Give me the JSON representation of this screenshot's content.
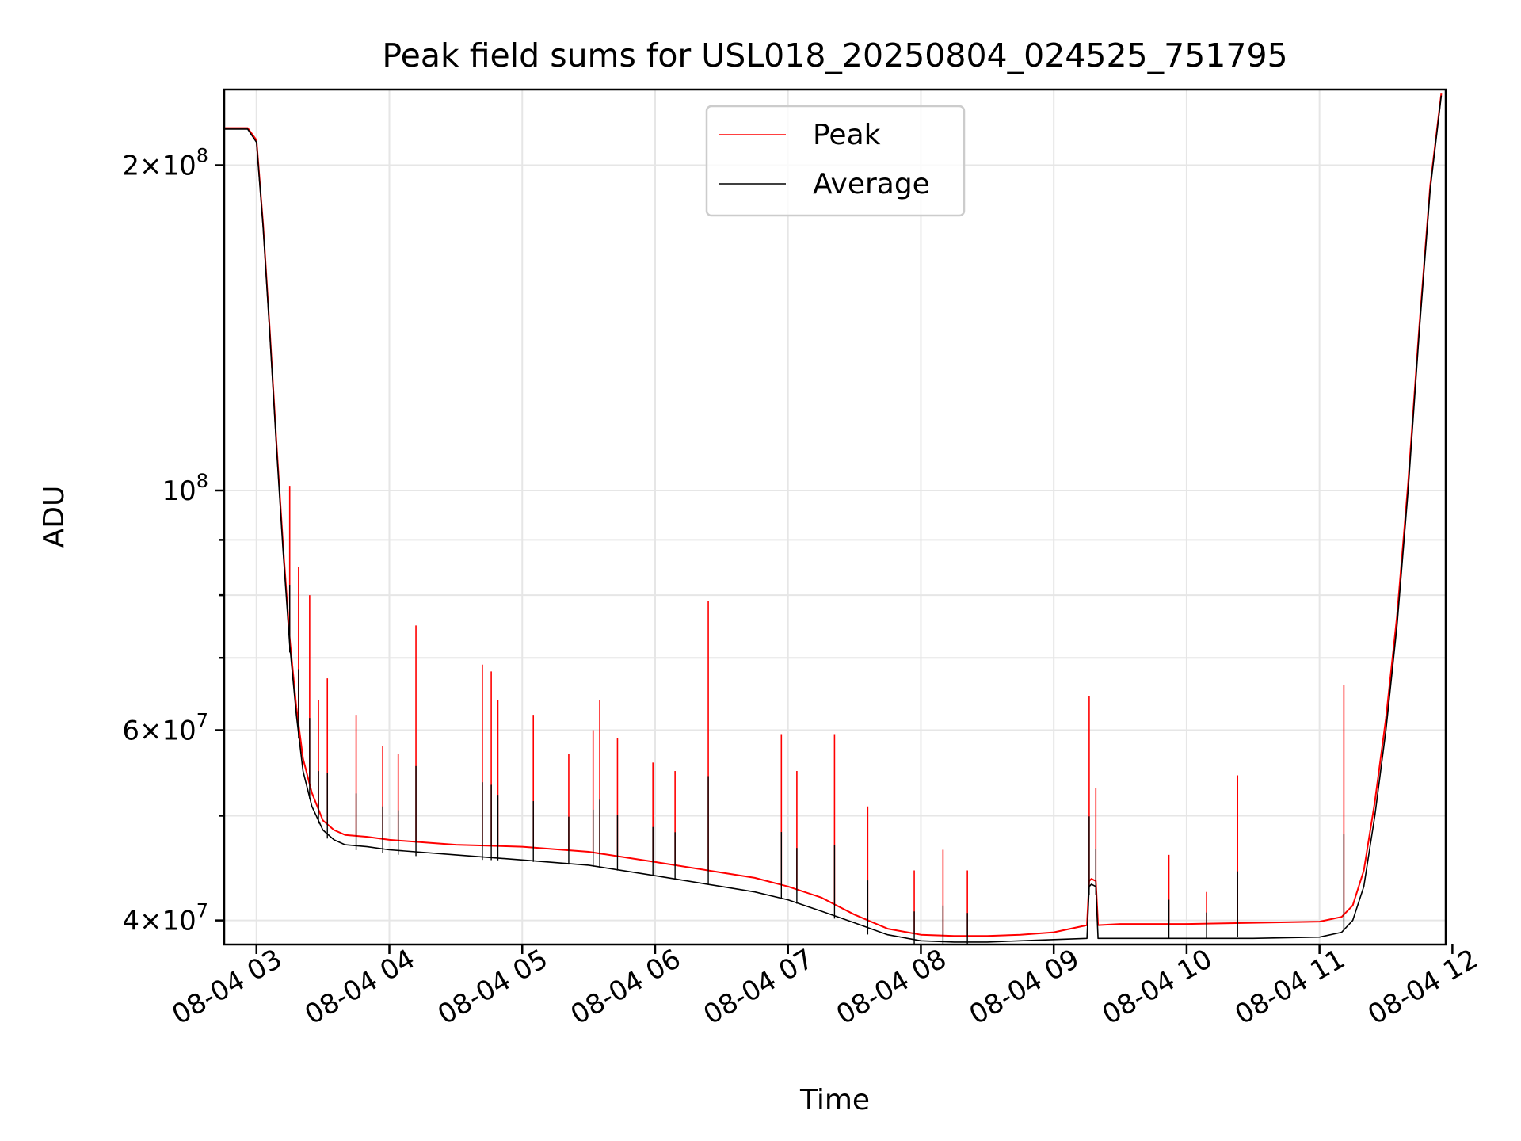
{
  "chart_data": {
    "type": "line",
    "title": "Peak field sums for USL018_20250804_024525_751795",
    "xlabel": "Time",
    "ylabel": "ADU",
    "yscale": "log",
    "ylim": [
      38000000,
      235000000
    ],
    "xlim": [
      "2025-08-04 02:45:25",
      "2025-08-04 11:57:00"
    ],
    "grid": true,
    "legend_position": "top-center",
    "x_ticks": [
      {
        "t": "2025-08-04 03:00",
        "label": "08-04 03"
      },
      {
        "t": "2025-08-04 04:00",
        "label": "08-04 04"
      },
      {
        "t": "2025-08-04 05:00",
        "label": "08-04 05"
      },
      {
        "t": "2025-08-04 06:00",
        "label": "08-04 06"
      },
      {
        "t": "2025-08-04 07:00",
        "label": "08-04 07"
      },
      {
        "t": "2025-08-04 08:00",
        "label": "08-04 08"
      },
      {
        "t": "2025-08-04 09:00",
        "label": "08-04 09"
      },
      {
        "t": "2025-08-04 10:00",
        "label": "08-04 10"
      },
      {
        "t": "2025-08-04 11:00",
        "label": "08-04 11"
      },
      {
        "t": "2025-08-04 12:00",
        "label": "08-04 12"
      }
    ],
    "y_ticks": [
      {
        "v": 40000000,
        "mant": "4",
        "exp": "7"
      },
      {
        "v": 60000000,
        "mant": "6",
        "exp": "7"
      },
      {
        "v": 100000000,
        "mant": "",
        "exp": "8"
      },
      {
        "v": 200000000,
        "mant": "2",
        "exp": "8"
      }
    ],
    "y_minor_ticks": [
      50000000,
      70000000,
      80000000,
      90000000
    ],
    "series": [
      {
        "name": "Average",
        "color": "#000000",
        "x": [
          "2025-08-04 02:45",
          "2025-08-04 02:56",
          "2025-08-04 03:00",
          "2025-08-04 03:03",
          "2025-08-04 03:06",
          "2025-08-04 03:09",
          "2025-08-04 03:12",
          "2025-08-04 03:15",
          "2025-08-04 03:18",
          "2025-08-04 03:21",
          "2025-08-04 03:25",
          "2025-08-04 03:30",
          "2025-08-04 03:35",
          "2025-08-04 03:40",
          "2025-08-04 03:50",
          "2025-08-04 04:00",
          "2025-08-04 04:30",
          "2025-08-04 05:00",
          "2025-08-04 05:30",
          "2025-08-04 06:00",
          "2025-08-04 06:30",
          "2025-08-04 06:45",
          "2025-08-04 07:00",
          "2025-08-04 07:15",
          "2025-08-04 07:30",
          "2025-08-04 07:45",
          "2025-08-04 08:00",
          "2025-08-04 08:15",
          "2025-08-04 08:30",
          "2025-08-04 08:45",
          "2025-08-04 09:00",
          "2025-08-04 09:15",
          "2025-08-04 09:16",
          "2025-08-04 09:17",
          "2025-08-04 09:19",
          "2025-08-04 09:20",
          "2025-08-04 09:30",
          "2025-08-04 10:00",
          "2025-08-04 10:30",
          "2025-08-04 11:00",
          "2025-08-04 11:10",
          "2025-08-04 11:15",
          "2025-08-04 11:20",
          "2025-08-04 11:25",
          "2025-08-04 11:30",
          "2025-08-04 11:35",
          "2025-08-04 11:40",
          "2025-08-04 11:45",
          "2025-08-04 11:50",
          "2025-08-04 11:55"
        ],
        "y": [
          216000000,
          216000000,
          210000000,
          175000000,
          140000000,
          110000000,
          88000000,
          72000000,
          62000000,
          55000000,
          51000000,
          48500000,
          47500000,
          47000000,
          46800000,
          46500000,
          46000000,
          45500000,
          45000000,
          44000000,
          43000000,
          42500000,
          41800000,
          40800000,
          39800000,
          38800000,
          38300000,
          38200000,
          38200000,
          38300000,
          38400000,
          38500000,
          43000000,
          43200000,
          43000000,
          38500000,
          38500000,
          38500000,
          38500000,
          38600000,
          39000000,
          40000000,
          43000000,
          50000000,
          60000000,
          75000000,
          100000000,
          140000000,
          190000000,
          232000000
        ]
      },
      {
        "name": "Peak",
        "color": "#ff0000",
        "x": [
          "2025-08-04 02:45",
          "2025-08-04 02:56",
          "2025-08-04 03:00",
          "2025-08-04 03:03",
          "2025-08-04 03:06",
          "2025-08-04 03:09",
          "2025-08-04 03:12",
          "2025-08-04 03:15",
          "2025-08-04 03:18",
          "2025-08-04 03:21",
          "2025-08-04 03:25",
          "2025-08-04 03:30",
          "2025-08-04 03:35",
          "2025-08-04 03:40",
          "2025-08-04 03:50",
          "2025-08-04 04:00",
          "2025-08-04 04:30",
          "2025-08-04 05:00",
          "2025-08-04 05:30",
          "2025-08-04 06:00",
          "2025-08-04 06:30",
          "2025-08-04 06:45",
          "2025-08-04 07:00",
          "2025-08-04 07:15",
          "2025-08-04 07:30",
          "2025-08-04 07:45",
          "2025-08-04 08:00",
          "2025-08-04 08:15",
          "2025-08-04 08:30",
          "2025-08-04 08:45",
          "2025-08-04 09:00",
          "2025-08-04 09:15",
          "2025-08-04 09:16",
          "2025-08-04 09:17",
          "2025-08-04 09:19",
          "2025-08-04 09:20",
          "2025-08-04 09:30",
          "2025-08-04 10:00",
          "2025-08-04 10:30",
          "2025-08-04 11:00",
          "2025-08-04 11:10",
          "2025-08-04 11:15",
          "2025-08-04 11:20",
          "2025-08-04 11:25",
          "2025-08-04 11:30",
          "2025-08-04 11:35",
          "2025-08-04 11:40",
          "2025-08-04 11:45",
          "2025-08-04 11:50",
          "2025-08-04 11:55"
        ],
        "y": [
          216500000,
          216500000,
          211000000,
          176000000,
          141000000,
          111000000,
          89000000,
          73000000,
          63000000,
          56500000,
          52500000,
          49500000,
          48500000,
          48000000,
          47800000,
          47500000,
          47000000,
          46800000,
          46300000,
          45300000,
          44300000,
          43800000,
          43000000,
          42000000,
          40500000,
          39300000,
          38800000,
          38700000,
          38700000,
          38800000,
          39000000,
          39600000,
          43500000,
          43700000,
          43500000,
          39600000,
          39700000,
          39700000,
          39800000,
          39900000,
          40300000,
          41300000,
          44500000,
          51500000,
          61500000,
          76500000,
          101500000,
          141500000,
          191500000,
          233000000
        ]
      }
    ],
    "spikes": [
      {
        "t": "2025-08-04 03:15",
        "v": 101000000
      },
      {
        "t": "2025-08-04 03:19",
        "v": 85000000
      },
      {
        "t": "2025-08-04 03:24",
        "v": 80000000
      },
      {
        "t": "2025-08-04 03:28",
        "v": 64000000
      },
      {
        "t": "2025-08-04 03:32",
        "v": 67000000
      },
      {
        "t": "2025-08-04 03:45",
        "v": 62000000
      },
      {
        "t": "2025-08-04 03:57",
        "v": 58000000
      },
      {
        "t": "2025-08-04 04:04",
        "v": 57000000
      },
      {
        "t": "2025-08-04 04:12",
        "v": 75000000
      },
      {
        "t": "2025-08-04 04:42",
        "v": 69000000
      },
      {
        "t": "2025-08-04 04:46",
        "v": 68000000
      },
      {
        "t": "2025-08-04 04:49",
        "v": 64000000
      },
      {
        "t": "2025-08-04 05:05",
        "v": 62000000
      },
      {
        "t": "2025-08-04 05:21",
        "v": 57000000
      },
      {
        "t": "2025-08-04 05:32",
        "v": 60000000
      },
      {
        "t": "2025-08-04 05:35",
        "v": 64000000
      },
      {
        "t": "2025-08-04 05:43",
        "v": 59000000
      },
      {
        "t": "2025-08-04 05:59",
        "v": 56000000
      },
      {
        "t": "2025-08-04 06:09",
        "v": 55000000
      },
      {
        "t": "2025-08-04 06:24",
        "v": 79000000
      },
      {
        "t": "2025-08-04 06:57",
        "v": 59500000
      },
      {
        "t": "2025-08-04 07:04",
        "v": 55000000
      },
      {
        "t": "2025-08-04 07:21",
        "v": 59500000
      },
      {
        "t": "2025-08-04 07:36",
        "v": 51000000
      },
      {
        "t": "2025-08-04 07:57",
        "v": 44500000
      },
      {
        "t": "2025-08-04 08:10",
        "v": 46500000
      },
      {
        "t": "2025-08-04 08:21",
        "v": 44500000
      },
      {
        "t": "2025-08-04 09:16",
        "v": 64500000
      },
      {
        "t": "2025-08-04 09:19",
        "v": 53000000
      },
      {
        "t": "2025-08-04 09:52",
        "v": 46000000
      },
      {
        "t": "2025-08-04 10:09",
        "v": 42500000
      },
      {
        "t": "2025-08-04 10:23",
        "v": 54500000
      },
      {
        "t": "2025-08-04 11:11",
        "v": 66000000
      }
    ]
  }
}
